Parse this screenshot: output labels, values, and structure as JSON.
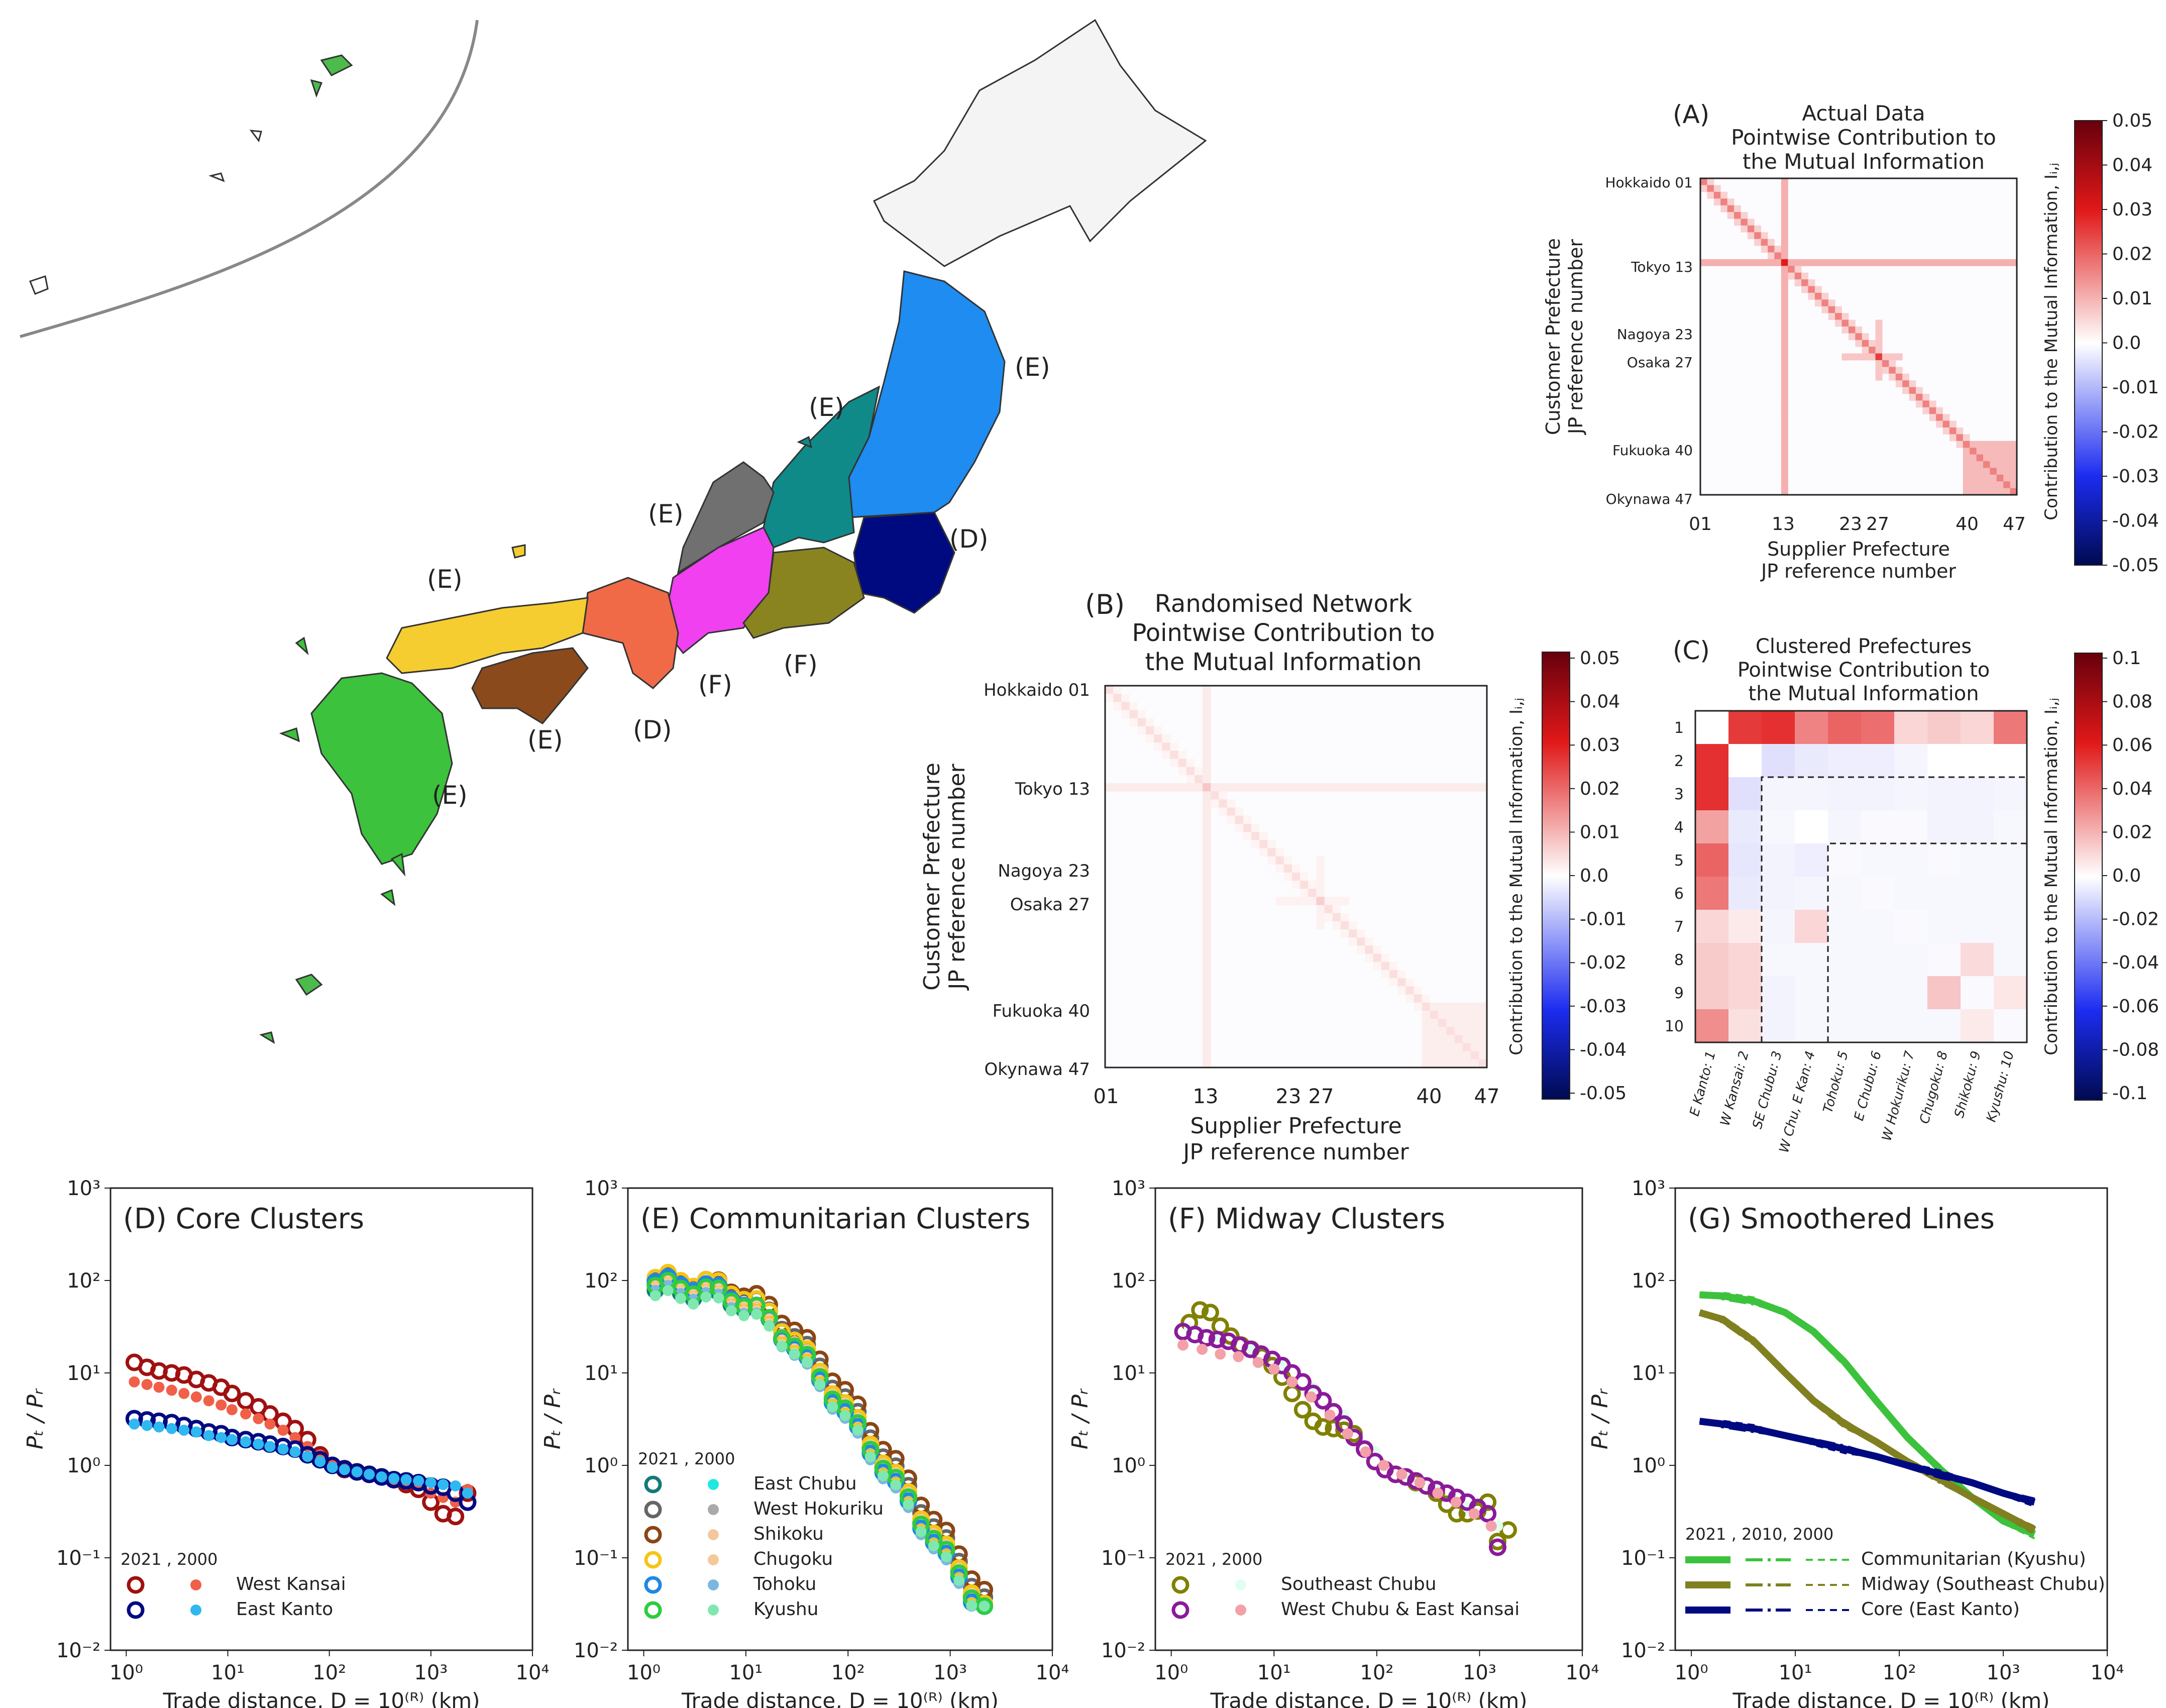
{
  "map": {
    "region_labels": [
      "(E)",
      "(E)",
      "(E)",
      "(E)",
      "(E)",
      "(E)",
      "(D)",
      "(D)",
      "(F)",
      "(F)"
    ],
    "region_colors": {
      "hokkaido": "#f4f4f4",
      "tohoku": "#1e8cf0",
      "kanto_east": "#000a80",
      "east_chubu": "#0f8a88",
      "hokuriku": "#707070",
      "west_chubu": "#f040f0",
      "se_chubu": "#8a8420",
      "kansai": "#f06a48",
      "chugoku": "#f5cd30",
      "shikoku": "#8b4a1c",
      "kyushu": "#3cc23c",
      "okinawa": "#4cbb4c"
    }
  },
  "panelA": {
    "letter": "(A)",
    "title": [
      "Actual Data",
      "Pointwise Contribution to",
      "the Mutual Information"
    ],
    "ylabel": [
      "Customer Prefecture",
      "JP reference number"
    ],
    "xlabel": [
      "Supplier Prefecture",
      "JP reference number"
    ],
    "yticks": [
      "Hokkaido 01",
      "Tokyo 13",
      "Nagoya 23",
      "Osaka 27",
      "Fukuoka 40",
      "Okynawa 47"
    ],
    "xticks": [
      "01",
      "13",
      "23",
      "27",
      "40",
      "47"
    ],
    "cbar_ticks": [
      "0.05",
      "0.04",
      "0.03",
      "0.02",
      "0.01",
      "0.0",
      "-0.01",
      "-0.02",
      "-0.03",
      "-0.04",
      "-0.05"
    ],
    "cbar_label": "Contribution to the Mutual Information, Iᵢ,ⱼ"
  },
  "panelB": {
    "letter": "(B)",
    "title": [
      "Randomised Network",
      "Pointwise Contribution to",
      "the Mutual Information"
    ],
    "ylabel": [
      "Customer Prefecture",
      "JP reference number"
    ],
    "xlabel": [
      "Supplier Prefecture",
      "JP reference number"
    ],
    "yticks": [
      "Hokkaido 01",
      "Tokyo 13",
      "Nagoya 23",
      "Osaka 27",
      "Fukuoka 40",
      "Okynawa 47"
    ],
    "xticks": [
      "01",
      "13",
      "23",
      "27",
      "40",
      "47"
    ],
    "cbar_ticks": [
      "0.05",
      "0.04",
      "0.03",
      "0.02",
      "0.01",
      "0.0",
      "-0.01",
      "-0.02",
      "-0.03",
      "-0.04",
      "-0.05"
    ],
    "cbar_label": "Contribution to the Mutual Information, Iᵢ,ⱼ"
  },
  "panelC": {
    "letter": "(C)",
    "title": [
      "Clustered Prefectures",
      "Pointwise Contribution to",
      "the Mutual Information"
    ],
    "yticks": [
      "1",
      "2",
      "3",
      "4",
      "5",
      "6",
      "7",
      "8",
      "9",
      "10"
    ],
    "xticks": [
      "E Kanto: 1",
      "W Kansai: 2",
      "SE Chubu: 3",
      "W Chu, E Kan: 4",
      "Tohoku: 5",
      "E Chubu: 6",
      "W Hokuriku: 7",
      "Chugoku: 8",
      "Shikoku: 9",
      "Kyushu: 10"
    ],
    "cbar_ticks": [
      "0.1",
      "0.08",
      "0.06",
      "0.04",
      "0.02",
      "0.0",
      "-0.02",
      "-0.04",
      "-0.06",
      "-0.08",
      "-0.1"
    ],
    "cbar_label": "Contribution to the Mutual Information, Iᵢ,ⱼ"
  },
  "log_axis": {
    "xticks": [
      "10⁰",
      "10¹",
      "10²",
      "10³",
      "10⁴"
    ],
    "yticks": [
      "10³",
      "10²",
      "10¹",
      "10⁰",
      "10⁻¹",
      "10⁻²"
    ],
    "xlabel": "Trade distance, D = 10⁽ᴿ⁾ (km)",
    "ylabel": "Pₜ / Pᵣ"
  },
  "chart_data": [
    {
      "type": "scatter",
      "title": "(D) Core Clusters",
      "xscale": "log",
      "yscale": "log",
      "xlim": [
        0.7,
        10000
      ],
      "ylim": [
        0.01,
        1000
      ],
      "legend_header": "2021 , 2000",
      "series": [
        {
          "name": "West Kansai",
          "year": "2021",
          "color": "#a01010",
          "marker": "open-circle",
          "x": [
            1.2,
            1.6,
            2.1,
            2.8,
            3.7,
            4.9,
            6.5,
            8.6,
            11,
            15,
            20,
            26,
            35,
            46,
            61,
            81,
            107,
            141,
            187,
            247,
            327,
            432,
            571,
            755,
            998,
            1320,
            1745,
            2300
          ],
          "y": [
            13,
            11.5,
            10.5,
            10,
            9.5,
            8.5,
            7.8,
            7,
            6,
            5,
            4.3,
            3.6,
            3,
            2.5,
            1.9,
            1.3,
            1,
            0.9,
            0.85,
            0.8,
            0.75,
            0.7,
            0.62,
            0.55,
            0.4,
            0.3,
            0.28,
            0.5
          ]
        },
        {
          "name": "West Kansai",
          "year": "2000",
          "color": "#f06048",
          "marker": "filled-circle",
          "x": [
            1.2,
            1.6,
            2.1,
            2.8,
            3.7,
            4.9,
            6.5,
            8.6,
            11,
            15,
            20,
            26,
            35,
            46,
            61,
            81,
            107,
            141,
            187,
            247,
            327,
            432,
            571,
            755,
            998,
            1320,
            1745,
            2300
          ],
          "y": [
            8,
            7.5,
            7,
            6.5,
            6,
            5.5,
            5,
            4.5,
            4,
            3.6,
            3.2,
            2.8,
            2.4,
            2,
            1.6,
            1.3,
            1.05,
            0.9,
            0.85,
            0.8,
            0.75,
            0.7,
            0.65,
            0.6,
            0.5,
            0.45,
            0.4,
            0.55
          ]
        },
        {
          "name": "East Kanto",
          "year": "2021",
          "color": "#000a80",
          "marker": "open-circle",
          "x": [
            1.2,
            1.6,
            2.1,
            2.8,
            3.7,
            4.9,
            6.5,
            8.6,
            11,
            15,
            20,
            26,
            35,
            46,
            61,
            81,
            107,
            141,
            187,
            247,
            327,
            432,
            571,
            755,
            998,
            1320,
            1745,
            2300
          ],
          "y": [
            3.2,
            3.1,
            3,
            2.9,
            2.7,
            2.5,
            2.3,
            2.2,
            2,
            1.9,
            1.8,
            1.7,
            1.6,
            1.5,
            1.3,
            1.15,
            1,
            0.92,
            0.85,
            0.8,
            0.75,
            0.7,
            0.68,
            0.65,
            0.6,
            0.58,
            0.5,
            0.4
          ]
        },
        {
          "name": "East Kanto",
          "year": "2000",
          "color": "#30b8f0",
          "marker": "filled-circle",
          "x": [
            1.2,
            1.6,
            2.1,
            2.8,
            3.7,
            4.9,
            6.5,
            8.6,
            11,
            15,
            20,
            26,
            35,
            46,
            61,
            81,
            107,
            141,
            187,
            247,
            327,
            432,
            571,
            755,
            998,
            1320,
            1745,
            2300
          ],
          "y": [
            2.8,
            2.7,
            2.6,
            2.5,
            2.4,
            2.3,
            2.1,
            2,
            1.9,
            1.8,
            1.7,
            1.6,
            1.5,
            1.4,
            1.25,
            1.1,
            0.95,
            0.9,
            0.85,
            0.8,
            0.75,
            0.72,
            0.7,
            0.68,
            0.65,
            0.62,
            0.6,
            0.5
          ]
        }
      ]
    },
    {
      "type": "scatter",
      "title": "(E) Communitarian Clusters",
      "xscale": "log",
      "yscale": "log",
      "xlim": [
        0.7,
        10000
      ],
      "ylim": [
        0.01,
        1000
      ],
      "legend_header": "2021 , 2000",
      "series": [
        {
          "name": "East Chubu",
          "year": "2021",
          "color": "#137a78",
          "marker": "open-circle",
          "shape": [
            80,
            1
          ]
        },
        {
          "name": "East Chubu",
          "year": "2000",
          "color": "#20e8e0",
          "marker": "filled-circle",
          "shape": [
            75,
            1.1
          ]
        },
        {
          "name": "West Hokuriku",
          "year": "2021",
          "color": "#666666",
          "marker": "open-circle",
          "shape": [
            95,
            0.95
          ]
        },
        {
          "name": "West Hokuriku",
          "year": "2000",
          "color": "#aaaaaa",
          "marker": "filled-circle",
          "shape": [
            85,
            1.05
          ]
        },
        {
          "name": "Shikoku",
          "year": "2021",
          "color": "#8b4513",
          "marker": "open-circle",
          "shape": [
            105,
            0.9
          ]
        },
        {
          "name": "Shikoku",
          "year": "2000",
          "color": "#f5c7a0",
          "marker": "filled-circle",
          "shape": [
            90,
            1
          ]
        },
        {
          "name": "Chugoku",
          "year": "2021",
          "color": "#f5c518",
          "marker": "open-circle",
          "shape": [
            110,
            1.15
          ]
        },
        {
          "name": "Chugoku",
          "year": "2000",
          "color": "#f5c89a",
          "marker": "filled-circle",
          "shape": [
            85,
            1.2
          ]
        },
        {
          "name": "Tohoku",
          "year": "2021",
          "color": "#1e88e5",
          "marker": "open-circle",
          "shape": [
            100,
            1.25
          ]
        },
        {
          "name": "Tohoku",
          "year": "2000",
          "color": "#7ab8e0",
          "marker": "filled-circle",
          "shape": [
            80,
            1.2
          ]
        },
        {
          "name": "Kyushu",
          "year": "2021",
          "color": "#2ecc40",
          "marker": "open-circle",
          "shape": [
            90,
            1.1
          ]
        },
        {
          "name": "Kyushu",
          "year": "2000",
          "color": "#7fe8b0",
          "marker": "filled-circle",
          "shape": [
            70,
            1.05
          ]
        }
      ]
    },
    {
      "type": "scatter",
      "title": "(F) Midway Clusters",
      "xscale": "log",
      "yscale": "log",
      "xlim": [
        0.7,
        10000
      ],
      "ylim": [
        0.01,
        1000
      ],
      "legend_header": "2021 , 2000",
      "series": [
        {
          "name": "Southeast Chubu",
          "year": "2021",
          "color": "#808000",
          "marker": "open-circle",
          "x": [
            1.5,
            1.9,
            2.4,
            3,
            3.8,
            4.8,
            6,
            7.6,
            9.6,
            12,
            15,
            19,
            24,
            30,
            38,
            48,
            60,
            76,
            96,
            120,
            152,
            192,
            240,
            304,
            380,
            480,
            600,
            760,
            960,
            1200,
            1500,
            1900
          ],
          "y": [
            35,
            48,
            45,
            32,
            25,
            20,
            18,
            15,
            12,
            9,
            6,
            4,
            3,
            2.6,
            2.5,
            2.4,
            2.2,
            1.5,
            1.1,
            0.9,
            0.8,
            0.75,
            0.65,
            0.6,
            0.5,
            0.38,
            0.3,
            0.3,
            0.32,
            0.4,
            0.15,
            0.2
          ]
        },
        {
          "name": "Southeast Chubu",
          "year": "2000",
          "color": "#e0fff0",
          "marker": "filled-circle",
          "x": [
            1.5,
            3,
            6,
            12,
            24,
            48,
            96,
            192,
            384,
            768,
            1500
          ],
          "y": [
            30,
            24,
            18,
            12,
            7,
            3.5,
            1.4,
            0.8,
            0.55,
            0.35,
            0.22
          ]
        },
        {
          "name": "West Chubu & East Kansai",
          "year": "2021",
          "color": "#8a1a9a",
          "marker": "open-circle",
          "x": [
            1.3,
            1.7,
            2.2,
            2.8,
            3.6,
            4.6,
            5.9,
            7.5,
            9.6,
            12,
            15,
            19,
            24,
            30,
            38,
            48,
            60,
            76,
            96,
            120,
            152,
            192,
            240,
            304,
            380,
            480,
            600,
            760,
            960,
            1200,
            1500
          ],
          "y": [
            28,
            26,
            24,
            23,
            22,
            20,
            18,
            16,
            14,
            12,
            10,
            8,
            6,
            5,
            3.8,
            2.8,
            2,
            1.5,
            1.1,
            0.9,
            0.8,
            0.75,
            0.68,
            0.6,
            0.55,
            0.5,
            0.45,
            0.4,
            0.35,
            0.3,
            0.13
          ]
        },
        {
          "name": "West Chubu & East Kansai",
          "year": "2000",
          "color": "#f4a0a8",
          "marker": "filled-circle",
          "x": [
            1.3,
            2,
            3,
            4.5,
            7,
            10,
            15,
            23,
            35,
            52,
            78,
            117,
            175,
            262,
            393,
            590,
            885,
            1300
          ],
          "y": [
            20,
            18,
            16,
            15,
            13,
            11,
            8,
            5.5,
            3.5,
            2.2,
            1.4,
            1,
            0.8,
            0.65,
            0.5,
            0.4,
            0.3,
            0.22
          ]
        }
      ]
    },
    {
      "type": "line",
      "title": "(G) Smoothered Lines",
      "xscale": "log",
      "yscale": "log",
      "xlim": [
        0.7,
        10000
      ],
      "ylim": [
        0.01,
        1000
      ],
      "legend_header": "2021 , 2010, 2000",
      "series": [
        {
          "name": "Communitarian (Kyushu)",
          "color": "#3cc23c",
          "years": [
            "2021",
            "2010",
            "2000"
          ],
          "x": [
            1.2,
            2,
            4,
            8,
            15,
            30,
            60,
            120,
            250,
            500,
            1000,
            2000
          ],
          "y": [
            70,
            68,
            60,
            45,
            28,
            13,
            5,
            2,
            0.9,
            0.45,
            0.25,
            0.18
          ]
        },
        {
          "name": "Midway (Southeast Chubu)",
          "color": "#808020",
          "years": [
            "2021",
            "2010",
            "2000"
          ],
          "x": [
            1.2,
            2,
            4,
            8,
            15,
            30,
            60,
            120,
            250,
            500,
            1000,
            2000
          ],
          "y": [
            45,
            38,
            22,
            10,
            5,
            2.8,
            1.8,
            1.1,
            0.7,
            0.45,
            0.3,
            0.2
          ]
        },
        {
          "name": "Core (East Kanto)",
          "color": "#000a80",
          "years": [
            "2021",
            "2010",
            "2000"
          ],
          "x": [
            1.2,
            2,
            4,
            8,
            15,
            30,
            60,
            120,
            250,
            500,
            1000,
            2000
          ],
          "y": [
            3,
            2.8,
            2.5,
            2.1,
            1.8,
            1.5,
            1.25,
            1,
            0.8,
            0.65,
            0.5,
            0.4
          ]
        }
      ]
    }
  ]
}
